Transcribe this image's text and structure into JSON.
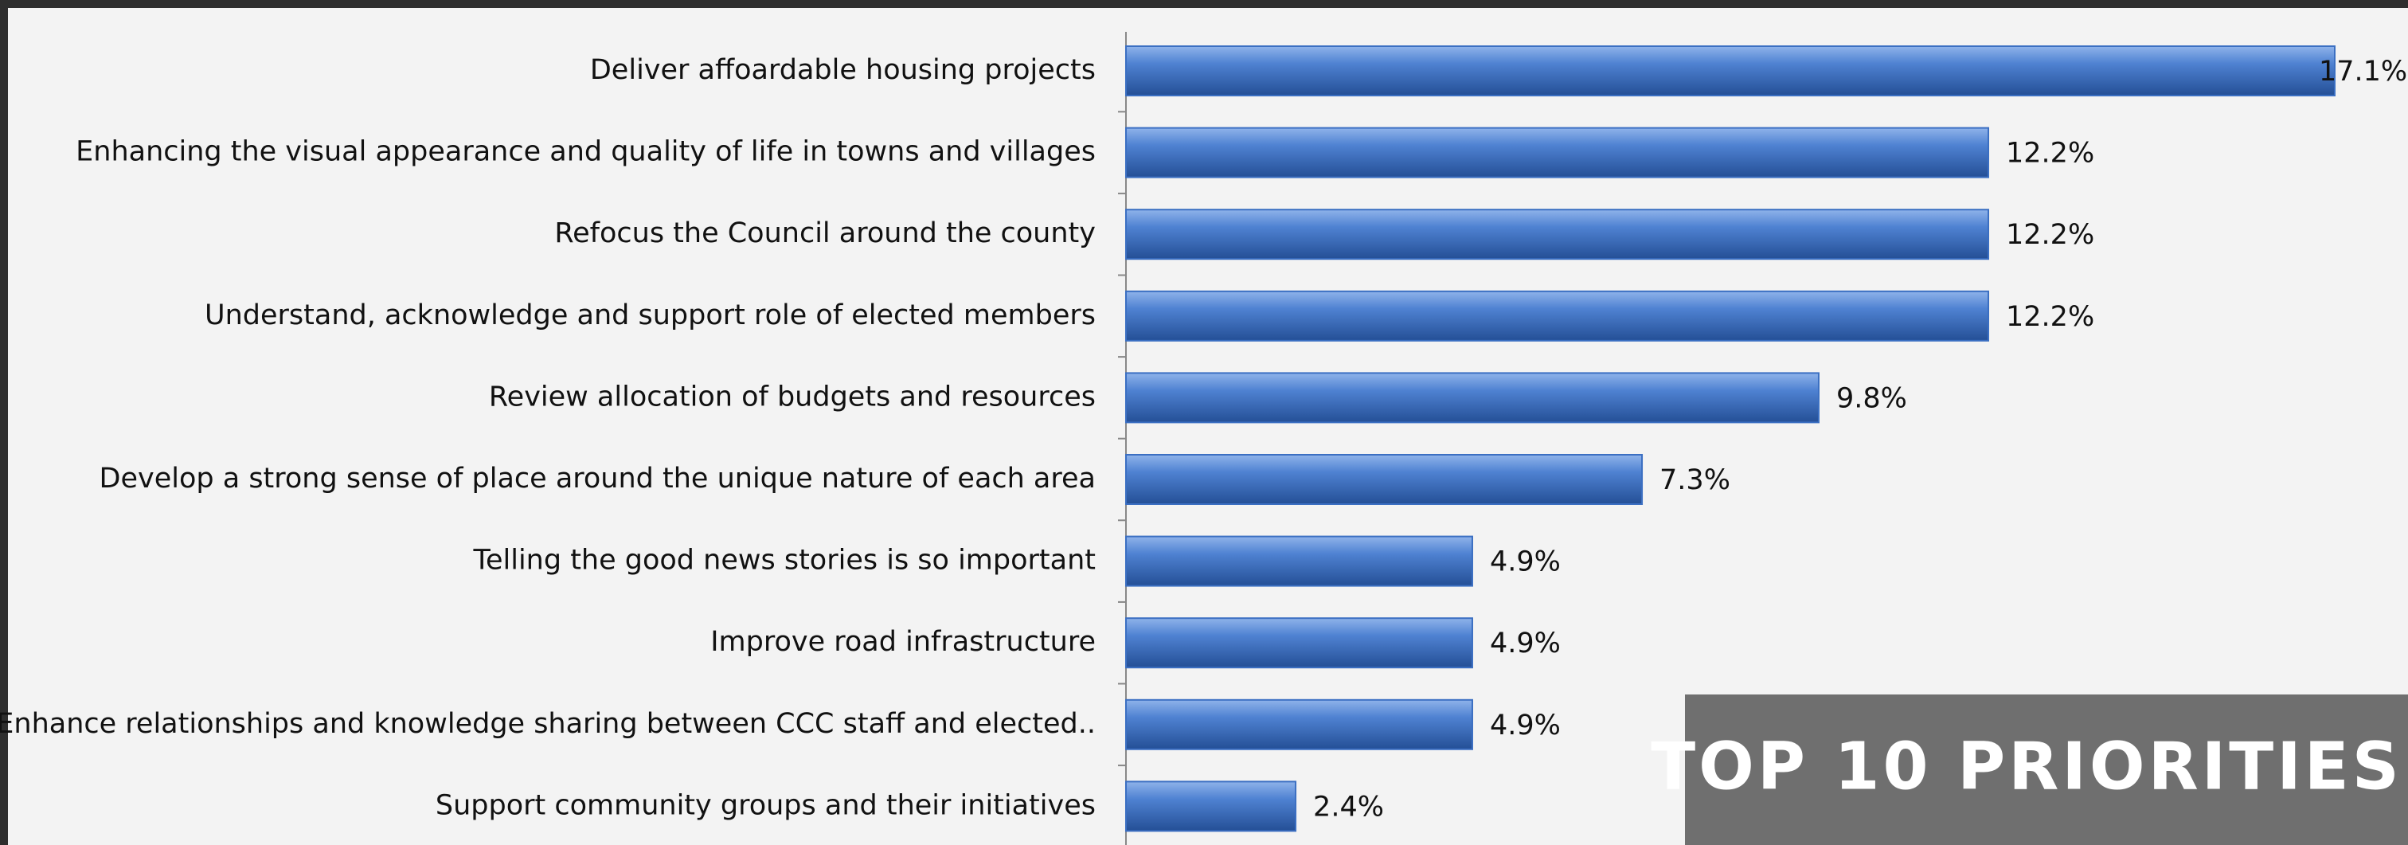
{
  "chart_data": {
    "type": "hbar",
    "title": "TOP 10 PRIORITIES",
    "categories": [
      "Deliver affoardable housing projects",
      "Enhancing the visual appearance and quality of life in towns and villages",
      "Refocus the Council around the county",
      "Understand, acknowledge and support role of elected members",
      "Review allocation of budgets and resources",
      "Develop a strong sense of place around the unique  nature of each area",
      "Telling the good news stories is so important",
      "Improve road infrastructure",
      "Enhance relationships and knowledge sharing between CCC staff and elected..",
      "Support community groups and their initiatives"
    ],
    "values": [
      17.1,
      12.2,
      12.2,
      12.2,
      9.8,
      7.3,
      4.9,
      4.9,
      4.9,
      2.4
    ],
    "value_labels": [
      "17.1%",
      "12.2%",
      "12.2%",
      "12.2%",
      "9.8%",
      "7.3%",
      "4.9%",
      "4.9%",
      "4.9%",
      "2.4%"
    ],
    "color": "#3b6fc2"
  }
}
